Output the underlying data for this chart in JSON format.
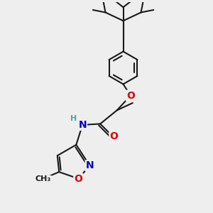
{
  "bg_color": "#eeeeee",
  "bond_color": "#1a1a1a",
  "bond_width": 1.5,
  "atom_colors": {
    "O": "#dd0000",
    "N": "#0000cc",
    "H": "#44aaaa",
    "C": "#1a1a1a"
  },
  "font_size": 9,
  "fig_size": [
    3.0,
    3.0
  ],
  "dpi": 100
}
